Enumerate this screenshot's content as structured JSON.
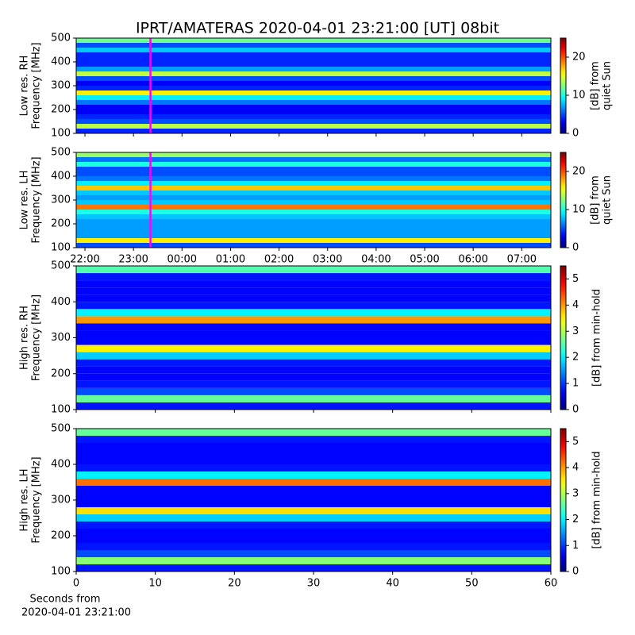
{
  "chart_data": [
    {
      "type": "heatmap",
      "title": "IPRT/AMATERAS 2020-04-01 23:21:00 [UT]   08bit",
      "ylabel": [
        "Low res. RH",
        "Frequency [MHz]"
      ],
      "xlim": [
        21.82,
        31.6
      ],
      "xticks": [
        {
          "value": 22,
          "label": "22:00"
        },
        {
          "value": 23,
          "label": "23:00"
        },
        {
          "value": 24,
          "label": "00:00"
        },
        {
          "value": 25,
          "label": "01:00"
        },
        {
          "value": 26,
          "label": "02:00"
        },
        {
          "value": 27,
          "label": "03:00"
        },
        {
          "value": 28,
          "label": "04:00"
        },
        {
          "value": 29,
          "label": "05:00"
        },
        {
          "value": 30,
          "label": "06:00"
        },
        {
          "value": 31,
          "label": "07:00"
        }
      ],
      "xticklabels": false,
      "vline": {
        "value": 23.35,
        "color": "#ff00ff"
      },
      "ylim": [
        100,
        500
      ],
      "yticks": [
        100,
        200,
        300,
        400,
        500
      ],
      "y_bins": [
        100,
        120,
        140,
        160,
        180,
        200,
        220,
        240,
        260,
        280,
        300,
        320,
        340,
        360,
        380,
        400,
        420,
        440,
        460,
        480,
        500
      ],
      "values": [
        4,
        14,
        5,
        4,
        3,
        3,
        6,
        9,
        16,
        4,
        3,
        5,
        14,
        7,
        4,
        4,
        4,
        8,
        5,
        12
      ],
      "cmap": "jet",
      "colorbar": {
        "label": [
          "[dB] from",
          "quiet Sun"
        ],
        "lim": [
          0,
          25
        ],
        "ticks": [
          0,
          10,
          20
        ]
      }
    },
    {
      "type": "heatmap",
      "ylabel": [
        "Low res. LH",
        "Frequency [MHz]"
      ],
      "xlim": [
        21.82,
        31.6
      ],
      "xticks": [
        {
          "value": 22,
          "label": "22:00"
        },
        {
          "value": 23,
          "label": "23:00"
        },
        {
          "value": 24,
          "label": "00:00"
        },
        {
          "value": 25,
          "label": "01:00"
        },
        {
          "value": 26,
          "label": "02:00"
        },
        {
          "value": 27,
          "label": "03:00"
        },
        {
          "value": 28,
          "label": "04:00"
        },
        {
          "value": 29,
          "label": "05:00"
        },
        {
          "value": 30,
          "label": "06:00"
        },
        {
          "value": 31,
          "label": "07:00"
        }
      ],
      "xticklabels": true,
      "vline": {
        "value": 23.35,
        "color": "#ff00ff"
      },
      "ylim": [
        100,
        500
      ],
      "yticks": [
        100,
        200,
        300,
        400,
        500
      ],
      "y_bins": [
        100,
        120,
        140,
        160,
        180,
        200,
        220,
        240,
        260,
        280,
        300,
        320,
        340,
        360,
        380,
        400,
        420,
        440,
        460,
        480,
        500
      ],
      "values": [
        5,
        16,
        7,
        7,
        7,
        7,
        8,
        10,
        19,
        8,
        7,
        8,
        17,
        9,
        6,
        5,
        5,
        10,
        6,
        13
      ],
      "cmap": "jet",
      "colorbar": {
        "label": [
          "[dB] from",
          "quiet Sun"
        ],
        "lim": [
          0,
          25
        ],
        "ticks": [
          0,
          10,
          20
        ]
      }
    },
    {
      "type": "heatmap",
      "ylabel": [
        "High res. RH",
        "Frequency [MHz]"
      ],
      "xlim": [
        0,
        60
      ],
      "xticks": [
        0,
        10,
        20,
        30,
        40,
        50,
        60
      ],
      "xticklabels": false,
      "ylim": [
        100,
        500
      ],
      "yticks": [
        100,
        200,
        300,
        400,
        500
      ],
      "y_bins": [
        100,
        120,
        140,
        160,
        180,
        200,
        220,
        240,
        260,
        280,
        300,
        320,
        340,
        360,
        380,
        400,
        420,
        440,
        460,
        480,
        500
      ],
      "values": [
        0.8,
        2.6,
        1.1,
        0.8,
        0.7,
        0.7,
        0.8,
        1.8,
        3.5,
        0.7,
        0.7,
        0.7,
        4,
        2,
        0.8,
        0.7,
        0.7,
        0.7,
        0.8,
        2.5
      ],
      "cmap": "jet",
      "colorbar": {
        "label": [
          "[dB] from min-hold"
        ],
        "lim": [
          0,
          5.5
        ],
        "ticks": [
          0,
          1,
          2,
          3,
          4,
          5
        ]
      }
    },
    {
      "type": "heatmap",
      "ylabel": [
        "High res. LH",
        "Frequency [MHz]"
      ],
      "xlim": [
        0,
        60
      ],
      "xticks": [
        0,
        10,
        20,
        30,
        40,
        50,
        60
      ],
      "xticklabels": true,
      "xlabel": [
        "Seconds from",
        "2020-04-01 23:21:00"
      ],
      "ylim": [
        100,
        500
      ],
      "yticks": [
        100,
        200,
        300,
        400,
        500
      ],
      "y_bins": [
        100,
        120,
        140,
        160,
        180,
        200,
        220,
        240,
        260,
        280,
        300,
        320,
        340,
        360,
        380,
        400,
        420,
        440,
        460,
        480,
        500
      ],
      "values": [
        0.8,
        2.8,
        1.1,
        0.8,
        0.7,
        0.7,
        0.8,
        1.8,
        3.6,
        0.7,
        0.7,
        0.7,
        4.2,
        2,
        0.8,
        0.7,
        0.7,
        0.7,
        0.8,
        2.6
      ],
      "cmap": "jet",
      "colorbar": {
        "label": [
          "[dB] from min-hold"
        ],
        "lim": [
          0,
          5.5
        ],
        "ticks": [
          0,
          1,
          2,
          3,
          4,
          5
        ]
      }
    }
  ]
}
